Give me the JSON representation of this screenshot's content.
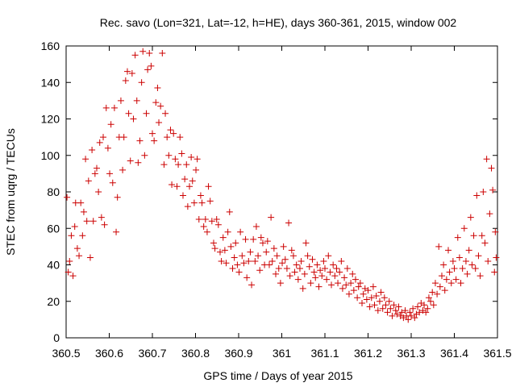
{
  "chart_data": {
    "type": "scatter",
    "title": "Rec. savo (Lon=321, Lat=-12, h=HE), days 360-361, 2015, window 002",
    "xlabel": "GPS time / Days of year 2015",
    "ylabel": "STEC from uqrg / TECUs",
    "xlim": [
      360.5,
      361.5
    ],
    "ylim": [
      0,
      160
    ],
    "x_ticks": [
      360.5,
      360.6,
      360.7,
      360.8,
      360.9,
      361,
      361.1,
      361.2,
      361.3,
      361.4,
      361.5
    ],
    "x_tick_labels": [
      "360.5",
      "360.6",
      "360.7",
      "360.8",
      "360.9",
      "361",
      "361.1",
      "361.2",
      "361.3",
      "361.4",
      "361.5"
    ],
    "y_ticks": [
      0,
      20,
      40,
      60,
      80,
      100,
      120,
      140,
      160
    ],
    "y_tick_labels": [
      "0",
      "20",
      "40",
      "60",
      "80",
      "100",
      "120",
      "140",
      "160"
    ],
    "marker": "plus",
    "color": "#cc0000",
    "grid": false,
    "series": [
      {
        "points": [
          [
            360.502,
            77
          ],
          [
            360.505,
            36
          ],
          [
            360.508,
            42
          ],
          [
            360.512,
            56
          ],
          [
            360.516,
            34
          ],
          [
            360.52,
            61
          ],
          [
            360.522,
            74
          ],
          [
            360.526,
            49
          ],
          [
            360.53,
            45
          ],
          [
            360.534,
            74
          ],
          [
            360.538,
            56
          ],
          [
            360.541,
            69
          ],
          [
            360.545,
            98
          ],
          [
            360.548,
            64
          ],
          [
            360.552,
            86
          ],
          [
            360.556,
            44
          ],
          [
            360.56,
            103
          ],
          [
            360.563,
            64
          ],
          [
            360.567,
            90
          ],
          [
            360.571,
            93
          ],
          [
            360.575,
            80
          ],
          [
            360.578,
            107
          ],
          [
            360.582,
            66
          ],
          [
            360.586,
            110
          ],
          [
            360.589,
            62
          ],
          [
            360.593,
            126
          ],
          [
            360.597,
            104
          ],
          [
            360.601,
            90
          ],
          [
            360.604,
            117
          ],
          [
            360.608,
            85
          ],
          [
            360.612,
            126
          ],
          [
            360.616,
            58
          ],
          [
            360.619,
            77
          ],
          [
            360.623,
            110
          ],
          [
            360.627,
            130
          ],
          [
            360.631,
            92
          ],
          [
            360.634,
            110
          ],
          [
            360.638,
            141
          ],
          [
            360.642,
            146
          ],
          [
            360.645,
            123
          ],
          [
            360.649,
            97
          ],
          [
            360.653,
            145
          ],
          [
            360.656,
            120
          ],
          [
            360.66,
            155
          ],
          [
            360.664,
            130
          ],
          [
            360.667,
            96
          ],
          [
            360.671,
            108
          ],
          [
            360.675,
            140
          ],
          [
            360.678,
            157
          ],
          [
            360.682,
            100
          ],
          [
            360.686,
            123
          ],
          [
            360.689,
            147
          ],
          [
            360.693,
            156
          ],
          [
            360.697,
            149
          ],
          [
            360.7,
            112
          ],
          [
            360.704,
            108
          ],
          [
            360.708,
            129
          ],
          [
            360.712,
            137
          ],
          [
            360.715,
            118
          ],
          [
            360.719,
            127
          ],
          [
            360.723,
            156
          ],
          [
            360.727,
            95
          ],
          [
            360.73,
            123
          ],
          [
            360.734,
            110
          ],
          [
            360.738,
            100
          ],
          [
            360.742,
            114
          ],
          [
            360.745,
            84
          ],
          [
            360.749,
            112
          ],
          [
            360.753,
            98
          ],
          [
            360.757,
            83
          ],
          [
            360.76,
            95
          ],
          [
            360.764,
            110
          ],
          [
            360.768,
            101
          ],
          [
            360.771,
            78
          ],
          [
            360.775,
            87
          ],
          [
            360.779,
            95
          ],
          [
            360.782,
            72
          ],
          [
            360.786,
            83
          ],
          [
            360.79,
            99
          ],
          [
            360.793,
            86
          ],
          [
            360.797,
            74
          ],
          [
            360.801,
            92
          ],
          [
            360.804,
            98
          ],
          [
            360.808,
            65
          ],
          [
            360.812,
            78
          ],
          [
            360.815,
            74
          ],
          [
            360.819,
            61
          ],
          [
            360.823,
            65
          ],
          [
            360.827,
            58
          ],
          [
            360.83,
            83
          ],
          [
            360.834,
            75
          ],
          [
            360.838,
            64
          ],
          [
            360.842,
            52
          ],
          [
            360.845,
            49
          ],
          [
            360.849,
            65
          ],
          [
            360.853,
            62
          ],
          [
            360.857,
            47
          ],
          [
            360.86,
            42
          ],
          [
            360.864,
            55
          ],
          [
            360.868,
            48
          ],
          [
            360.871,
            41
          ],
          [
            360.875,
            58
          ],
          [
            360.879,
            69
          ],
          [
            360.882,
            50
          ],
          [
            360.886,
            38
          ],
          [
            360.89,
            44
          ],
          [
            360.893,
            52
          ],
          [
            360.897,
            40
          ],
          [
            360.901,
            36
          ],
          [
            360.904,
            58
          ],
          [
            360.908,
            45
          ],
          [
            360.912,
            41
          ],
          [
            360.916,
            54
          ],
          [
            360.919,
            33
          ],
          [
            360.923,
            42
          ],
          [
            360.927,
            47
          ],
          [
            360.93,
            29
          ],
          [
            360.934,
            54
          ],
          [
            360.938,
            42
          ],
          [
            360.941,
            61
          ],
          [
            360.945,
            45
          ],
          [
            360.949,
            37
          ],
          [
            360.952,
            55
          ],
          [
            360.956,
            52
          ],
          [
            360.96,
            40
          ],
          [
            360.964,
            47
          ],
          [
            360.967,
            53
          ],
          [
            360.971,
            40
          ],
          [
            360.975,
            66
          ],
          [
            360.978,
            42
          ],
          [
            360.982,
            49
          ],
          [
            360.986,
            35
          ],
          [
            360.989,
            45
          ],
          [
            360.993,
            38
          ],
          [
            360.997,
            30
          ],
          [
            361.001,
            41
          ],
          [
            361.004,
            50
          ],
          [
            361.008,
            43
          ],
          [
            361.012,
            38
          ],
          [
            361.016,
            63
          ],
          [
            361.019,
            34
          ],
          [
            361.023,
            48
          ],
          [
            361.027,
            45
          ],
          [
            361.03,
            36
          ],
          [
            361.034,
            40
          ],
          [
            361.038,
            32
          ],
          [
            361.042,
            38
          ],
          [
            361.045,
            42
          ],
          [
            361.049,
            27
          ],
          [
            361.053,
            35
          ],
          [
            361.056,
            52
          ],
          [
            361.06,
            45
          ],
          [
            361.064,
            39
          ],
          [
            361.067,
            30
          ],
          [
            361.071,
            43
          ],
          [
            361.075,
            36
          ],
          [
            361.078,
            33
          ],
          [
            361.082,
            40
          ],
          [
            361.086,
            28
          ],
          [
            361.089,
            37
          ],
          [
            361.093,
            34
          ],
          [
            361.097,
            42
          ],
          [
            361.1,
            38
          ],
          [
            361.104,
            32
          ],
          [
            361.108,
            45
          ],
          [
            361.112,
            36
          ],
          [
            361.115,
            29
          ],
          [
            361.119,
            40
          ],
          [
            361.123,
            34
          ],
          [
            361.127,
            38
          ],
          [
            361.13,
            30
          ],
          [
            361.134,
            36
          ],
          [
            361.138,
            42
          ],
          [
            361.141,
            27
          ],
          [
            361.145,
            33
          ],
          [
            361.149,
            29
          ],
          [
            361.152,
            38
          ],
          [
            361.156,
            24
          ],
          [
            361.16,
            30
          ],
          [
            361.164,
            35
          ],
          [
            361.167,
            26
          ],
          [
            361.171,
            32
          ],
          [
            361.175,
            22
          ],
          [
            361.178,
            28
          ],
          [
            361.182,
            30
          ],
          [
            361.186,
            19
          ],
          [
            361.189,
            24
          ],
          [
            361.193,
            27
          ],
          [
            361.197,
            21
          ],
          [
            361.2,
            26
          ],
          [
            361.204,
            17
          ],
          [
            361.208,
            22
          ],
          [
            361.212,
            28
          ],
          [
            361.215,
            18
          ],
          [
            361.219,
            23
          ],
          [
            361.223,
            15
          ],
          [
            361.227,
            20
          ],
          [
            361.23,
            25
          ],
          [
            361.234,
            16
          ],
          [
            361.238,
            22
          ],
          [
            361.241,
            18
          ],
          [
            361.245,
            14
          ],
          [
            361.249,
            20
          ],
          [
            361.252,
            16
          ],
          [
            361.256,
            12
          ],
          [
            361.26,
            18
          ],
          [
            361.264,
            15
          ],
          [
            361.267,
            13
          ],
          [
            361.271,
            17
          ],
          [
            361.275,
            12
          ],
          [
            361.278,
            14
          ],
          [
            361.282,
            11
          ],
          [
            361.286,
            15
          ],
          [
            361.289,
            12
          ],
          [
            361.293,
            10
          ],
          [
            361.297,
            14
          ],
          [
            361.3,
            12
          ],
          [
            361.304,
            16
          ],
          [
            361.308,
            11
          ],
          [
            361.312,
            13
          ],
          [
            361.315,
            17
          ],
          [
            361.319,
            14
          ],
          [
            361.323,
            19
          ],
          [
            361.327,
            15
          ],
          [
            361.33,
            18
          ],
          [
            361.334,
            14
          ],
          [
            361.338,
            16
          ],
          [
            361.341,
            22
          ],
          [
            361.345,
            20
          ],
          [
            361.349,
            25
          ],
          [
            361.352,
            18
          ],
          [
            361.356,
            30
          ],
          [
            361.36,
            24
          ],
          [
            361.364,
            50
          ],
          [
            361.367,
            28
          ],
          [
            361.371,
            34
          ],
          [
            361.375,
            40
          ],
          [
            361.378,
            26
          ],
          [
            361.382,
            32
          ],
          [
            361.386,
            48
          ],
          [
            361.389,
            36
          ],
          [
            361.393,
            30
          ],
          [
            361.397,
            42
          ],
          [
            361.4,
            38
          ],
          [
            361.404,
            32
          ],
          [
            361.408,
            55
          ],
          [
            361.412,
            44
          ],
          [
            361.415,
            30
          ],
          [
            361.419,
            38
          ],
          [
            361.423,
            60
          ],
          [
            361.427,
            42
          ],
          [
            361.43,
            35
          ],
          [
            361.434,
            48
          ],
          [
            361.438,
            66
          ],
          [
            361.441,
            40
          ],
          [
            361.445,
            56
          ],
          [
            361.449,
            38
          ],
          [
            361.452,
            78
          ],
          [
            361.456,
            45
          ],
          [
            361.46,
            34
          ],
          [
            361.464,
            56
          ],
          [
            361.467,
            80
          ],
          [
            361.471,
            52
          ],
          [
            361.475,
            98
          ],
          [
            361.478,
            42
          ],
          [
            361.482,
            68
          ],
          [
            361.486,
            93
          ],
          [
            361.489,
            81
          ],
          [
            361.493,
            36
          ],
          [
            361.495,
            58
          ],
          [
            361.497,
            44
          ]
        ]
      }
    ]
  }
}
